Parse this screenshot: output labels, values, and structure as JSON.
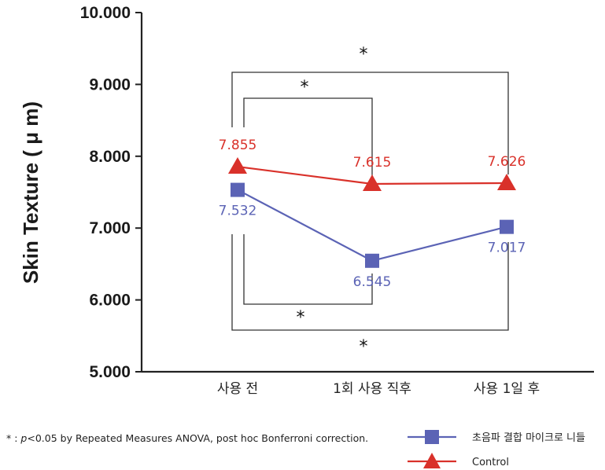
{
  "chart_data": {
    "type": "line",
    "ylabel": "Skin Texture ( μ m)",
    "ylim": [
      5.0,
      10.0
    ],
    "yticks": [
      "10.000",
      "9.000",
      "8.000",
      "7.000",
      "6.000",
      "5.000"
    ],
    "categories": [
      "사용 전",
      "1회 사용 직후",
      "사용 1일 후"
    ],
    "series": [
      {
        "name": "초음파 결합 마이크로 니들",
        "values": [
          7.532,
          6.545,
          7.017
        ],
        "labels": [
          "7.532",
          "6.545",
          "7.017"
        ],
        "color": "#5b63b5",
        "marker": "square"
      },
      {
        "name": "Control",
        "values": [
          7.855,
          7.615,
          7.626
        ],
        "labels": [
          "7.855",
          "7.615",
          "7.626"
        ],
        "color": "#d9312a",
        "marker": "triangle"
      }
    ],
    "significance_marks": [
      "*",
      "*",
      "*",
      "*"
    ],
    "legend_position": "bottom-right",
    "grid": false
  },
  "footnote": {
    "prefix": "* :  ",
    "p_italic": "p",
    "text": "<0.05 by Repeated Measures ANOVA, post hoc Bonferroni correction."
  }
}
